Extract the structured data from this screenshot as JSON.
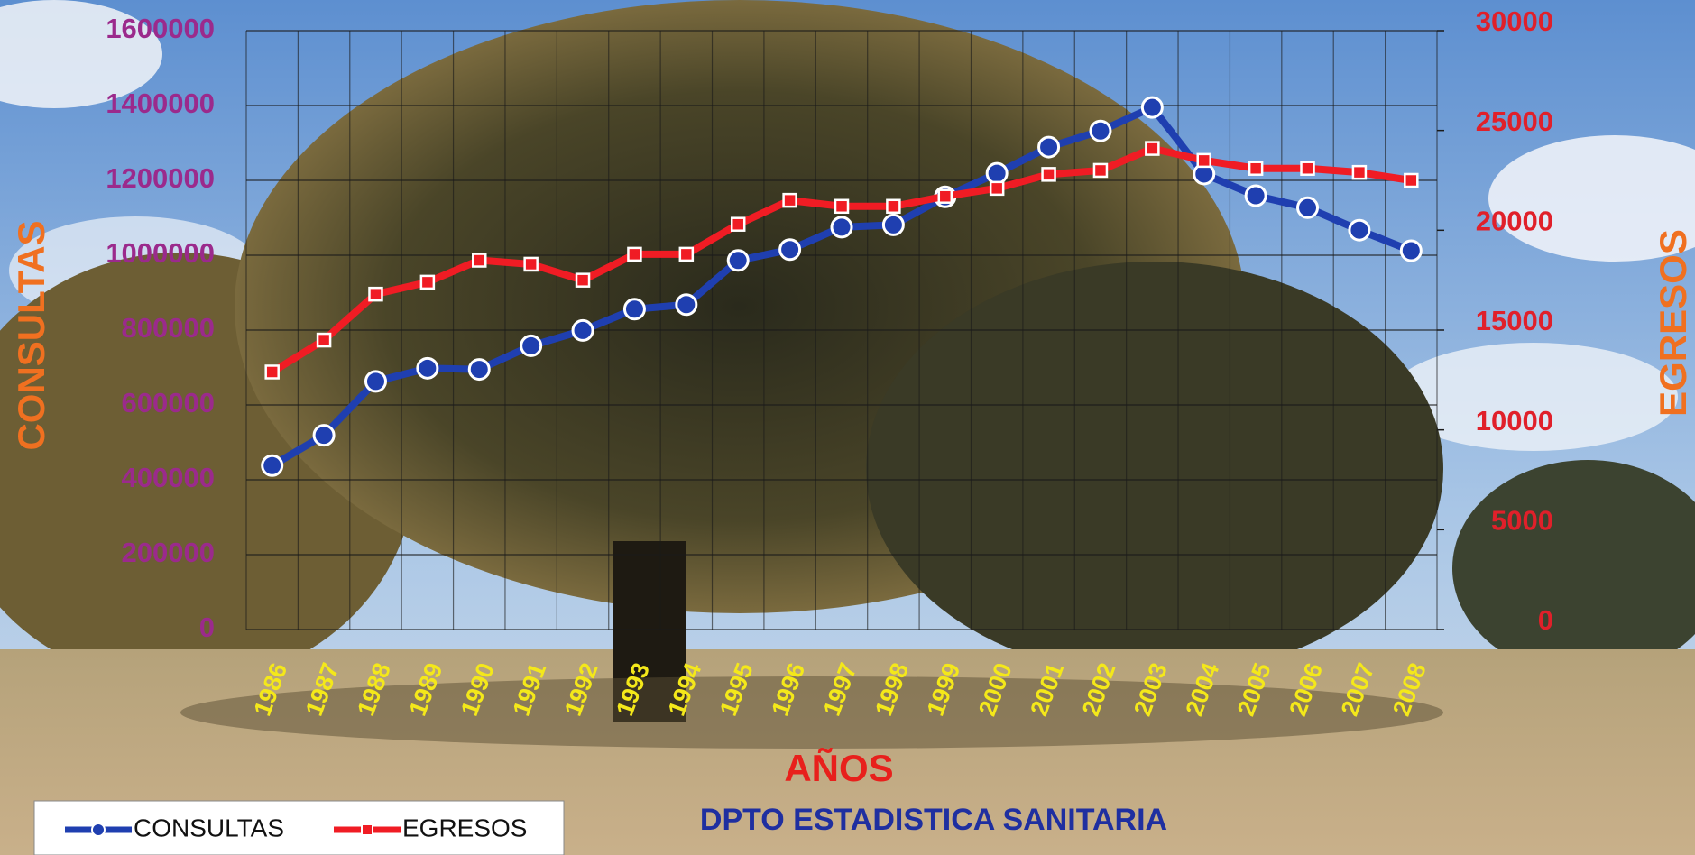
{
  "chart_data": {
    "type": "line",
    "x_label": "AÑOS",
    "subtitle": "DPTO ESTADISTICA SANITARIA",
    "y_label": "CONSULTAS",
    "y2_label": "EGRESOS",
    "categories": [
      "1986",
      "1987",
      "1988",
      "1989",
      "1990",
      "1991",
      "1992",
      "1993",
      "1994",
      "1995",
      "1996",
      "1997",
      "1998",
      "1999",
      "2000",
      "2001",
      "2002",
      "2003",
      "2004",
      "2005",
      "2006",
      "2007",
      "2008"
    ],
    "series": [
      {
        "name": "CONSULTAS",
        "color": "#1f3fb0",
        "marker": "circle",
        "values": [
          438000,
          519000,
          663000,
          698000,
          695000,
          758000,
          799000,
          856000,
          868000,
          986000,
          1015000,
          1075000,
          1081000,
          1156000,
          1219000,
          1289000,
          1332000,
          1395000,
          1217000,
          1159000,
          1127000,
          1067000,
          1012000
        ]
      },
      {
        "name": "EGRESOS",
        "color": "#f01c24",
        "marker": "square",
        "axis": "y2",
        "values": [
          12900,
          14500,
          16800,
          17400,
          18500,
          18300,
          17500,
          18800,
          18800,
          20300,
          21500,
          21200,
          21200,
          21700,
          22100,
          22800,
          23000,
          24100,
          23500,
          23100,
          23100,
          22900,
          22500
        ]
      }
    ],
    "ylim": [
      0,
      1600000
    ],
    "yticks": [
      0,
      200000,
      400000,
      600000,
      800000,
      1000000,
      1200000,
      1400000,
      1600000
    ],
    "y2lim": [
      0,
      30000
    ],
    "y2ticks": [
      0,
      5000,
      10000,
      15000,
      20000,
      25000,
      30000
    ],
    "grid": true,
    "legend": "bottom-left"
  }
}
